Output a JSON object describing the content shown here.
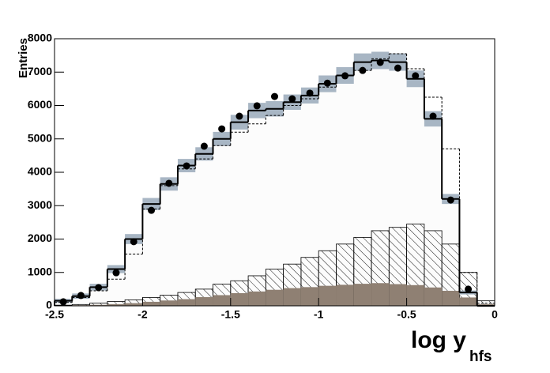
{
  "chart_data": {
    "type": "histogram",
    "y_label": "Entries",
    "x_label": "log y",
    "x_label_sub": "hfs",
    "bins": [
      -2.5,
      -2.4,
      -2.3,
      -2.2,
      -2.1,
      -2.0,
      -1.9,
      -1.8,
      -1.7,
      -1.6,
      -1.5,
      -1.4,
      -1.3,
      -1.2,
      -1.1,
      -1.0,
      -0.9,
      -0.8,
      -0.7,
      -0.6,
      -0.5,
      -0.4,
      -0.3,
      -0.2,
      -0.1,
      0
    ],
    "xlim": [
      -2.5,
      0
    ],
    "ylim": [
      0,
      8000
    ],
    "xticks": [
      -2.5,
      -2,
      -1.5,
      -1,
      -0.5,
      0
    ],
    "yticks": [
      0,
      1000,
      2000,
      3000,
      4000,
      5000,
      6000,
      7000,
      8000
    ],
    "series": [
      {
        "style": "filled",
        "color": "#8f8073",
        "values": [
          10,
          20,
          30,
          50,
          80,
          120,
          160,
          200,
          260,
          320,
          380,
          430,
          480,
          530,
          560,
          600,
          630,
          660,
          680,
          650,
          620,
          550,
          450,
          250,
          50
        ]
      },
      {
        "style": "hatched",
        "color": "#000000",
        "values": [
          20,
          40,
          80,
          130,
          180,
          250,
          320,
          400,
          500,
          650,
          750,
          900,
          1100,
          1250,
          1450,
          1650,
          1850,
          2050,
          2250,
          2350,
          2450,
          2250,
          1850,
          1000,
          150
        ]
      },
      {
        "style": "dashed",
        "color": "#000000",
        "values": [
          100,
          250,
          450,
          800,
          1550,
          2900,
          3600,
          4100,
          4400,
          4800,
          5200,
          5450,
          5700,
          6000,
          6200,
          6550,
          6900,
          7050,
          7400,
          7550,
          7100,
          6250,
          4700,
          1000,
          80
        ]
      },
      {
        "style": "solid",
        "color": "#000000",
        "band_color": "#a8b6c4",
        "values": [
          150,
          290,
          560,
          1100,
          2000,
          3050,
          3650,
          4200,
          4550,
          5000,
          5500,
          5850,
          5900,
          6100,
          6300,
          6650,
          6900,
          7300,
          7350,
          7300,
          6800,
          5600,
          3200,
          400,
          0
        ],
        "errors": [
          60,
          80,
          100,
          120,
          150,
          180,
          200,
          200,
          200,
          210,
          220,
          230,
          230,
          230,
          240,
          250,
          250,
          260,
          260,
          260,
          250,
          230,
          150,
          60,
          0
        ]
      },
      {
        "style": "points",
        "color": "#000000",
        "values": [
          120,
          310,
          545,
          990,
          1920,
          2860,
          3670,
          4190,
          4780,
          5300,
          5680,
          5990,
          6270,
          6200,
          6370,
          6670,
          6890,
          7050,
          7290,
          7120,
          6890,
          5680,
          3170,
          500,
          null
        ]
      }
    ]
  }
}
